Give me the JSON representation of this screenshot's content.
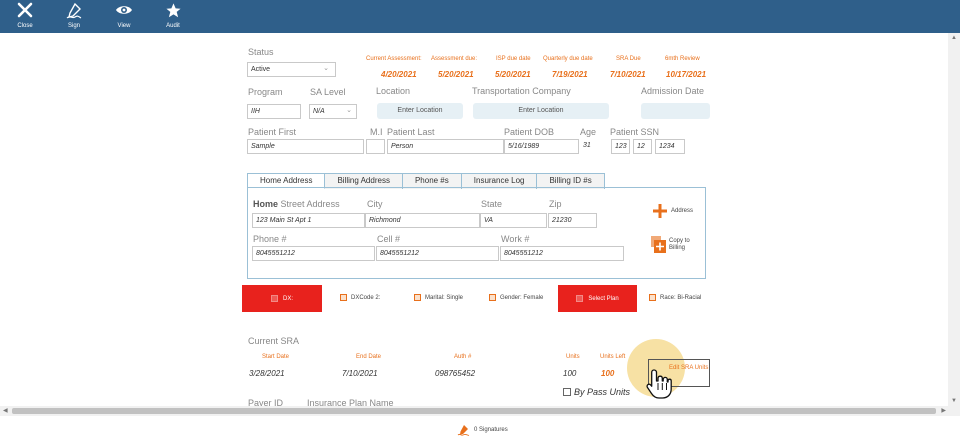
{
  "toolbar": {
    "close_label": "Close",
    "sign_label": "Sign",
    "view_label": "View",
    "audit_label": "Audit"
  },
  "status": {
    "label": "Status",
    "value": "Active"
  },
  "assessments": {
    "current_label": "Current Assessment:",
    "current_value": "4/20/2021",
    "due_label": "Assessment due:",
    "due_value": "5/20/2021",
    "isp_label": "ISP due date",
    "isp_value": "5/20/2021",
    "quarterly_label": "Quarterly due date",
    "quarterly_value": "7/19/2021",
    "sra_label": "SRA Due",
    "sra_value": "7/10/2021",
    "sixth_label": "6mth Review",
    "sixth_value": "10/17/2021"
  },
  "program": {
    "program_label": "Program",
    "program_value": "IIH",
    "sa_label": "SA Level",
    "sa_value": "N/A",
    "location_label": "Location",
    "location_button": "Enter Location",
    "transport_label": "Transportation Company",
    "transport_button": "Enter Location",
    "admission_label": "Admission Date"
  },
  "patient": {
    "first_label": "Patient First",
    "first_value": "Sample",
    "mi_label": "M.I",
    "last_label": "Patient Last",
    "last_value": "Person",
    "dob_label": "Patient DOB",
    "dob_value": "5/16/1989",
    "age_label": "Age",
    "age_value": "31",
    "ssn_label": "Patient SSN",
    "ssn1": "123",
    "ssn2": "12",
    "ssn3": "1234"
  },
  "tabs": [
    "Home Address",
    "Billing Address",
    "Phone #s",
    "Insurance Log",
    "Billing ID #s"
  ],
  "address": {
    "home_bold": "Home",
    "street_label": "Street Address",
    "street_value": "123 Main St Apt 1",
    "city_label": "City",
    "city_value": "Richmond",
    "state_label": "State",
    "state_value": "VA",
    "zip_label": "Zip",
    "zip_value": "21230",
    "phone_label": "Phone #",
    "phone_value": "8045551212",
    "cell_label": "Cell #",
    "cell_value": "8045551212",
    "work_label": "Work #",
    "work_value": "8045551212",
    "add_address": "Address",
    "copy_billing_1": "Copy to",
    "copy_billing_2": "Billing"
  },
  "tags": {
    "dx": "DX:",
    "dxcode2": "DXCode 2:",
    "marital": "Marital: Single",
    "gender": "Gender: Female",
    "select_plan": "Select Plan",
    "race": "Race: Bi-Racial"
  },
  "sra": {
    "title": "Current SRA",
    "start_label": "Start Date",
    "start_value": "3/28/2021",
    "end_label": "End Date",
    "end_value": "7/10/2021",
    "auth_label": "Auth #",
    "auth_value": "098765452",
    "units_label": "Units",
    "units_value": "100",
    "units_left_label": "Units Left",
    "units_left_value": "100",
    "edit_button": "Edit SRA Units",
    "bypass_label": "By Pass Units",
    "payer_label": "Payer ID",
    "insurance_label": "Insurance Plan Name"
  },
  "footer": {
    "signatures": "0 Signatures"
  },
  "colors": {
    "topbar": "#2f5f8a",
    "accent_orange": "#e8701c",
    "accent_red": "#e8221d"
  }
}
